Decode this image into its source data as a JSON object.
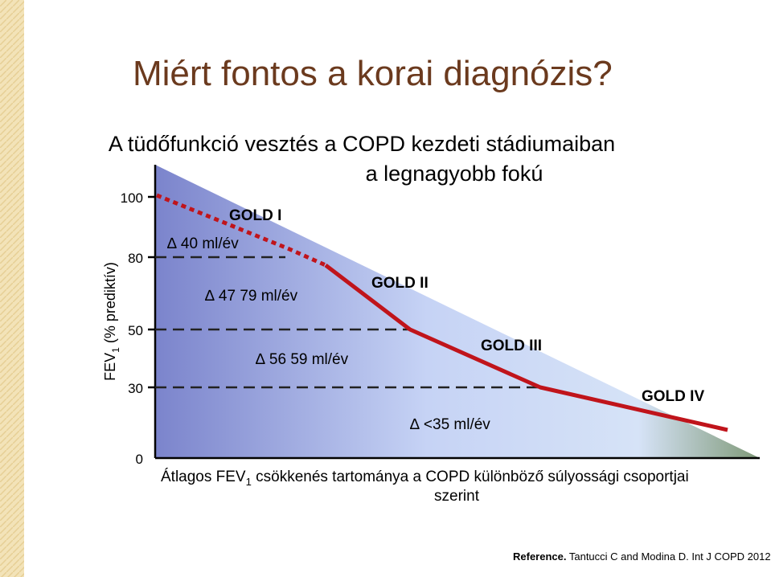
{
  "title": "Miért fontos a korai diagnózis?",
  "subtitle": {
    "line1": "A tüdőfunkció vesztés a COPD kezdeti stádiumaiban",
    "line2": "a legnagyobb fokú"
  },
  "y_axis": {
    "label": "FEV",
    "label_sub": "1",
    "label_rest": " (% prediktív)",
    "ticks": [
      "100",
      "80",
      "50",
      "30",
      "0"
    ]
  },
  "stages": [
    "GOLD I",
    "GOLD II",
    "GOLD III",
    "GOLD IV"
  ],
  "rates": [
    "∆ 40 ml/év",
    "∆ 47 79 ml/év",
    "∆ 56 59 ml/év",
    "∆ <35 ml/év"
  ],
  "caption": {
    "start": "Átlagos FEV",
    "sub": "1",
    "rest": " csökkenés tartománya a COPD különböző  súlyossági csoportjai",
    "line2": "szerint"
  },
  "reference": {
    "label": "Reference.",
    "text": " Tantucci C and Modina D. Int J COPD 2012."
  }
}
